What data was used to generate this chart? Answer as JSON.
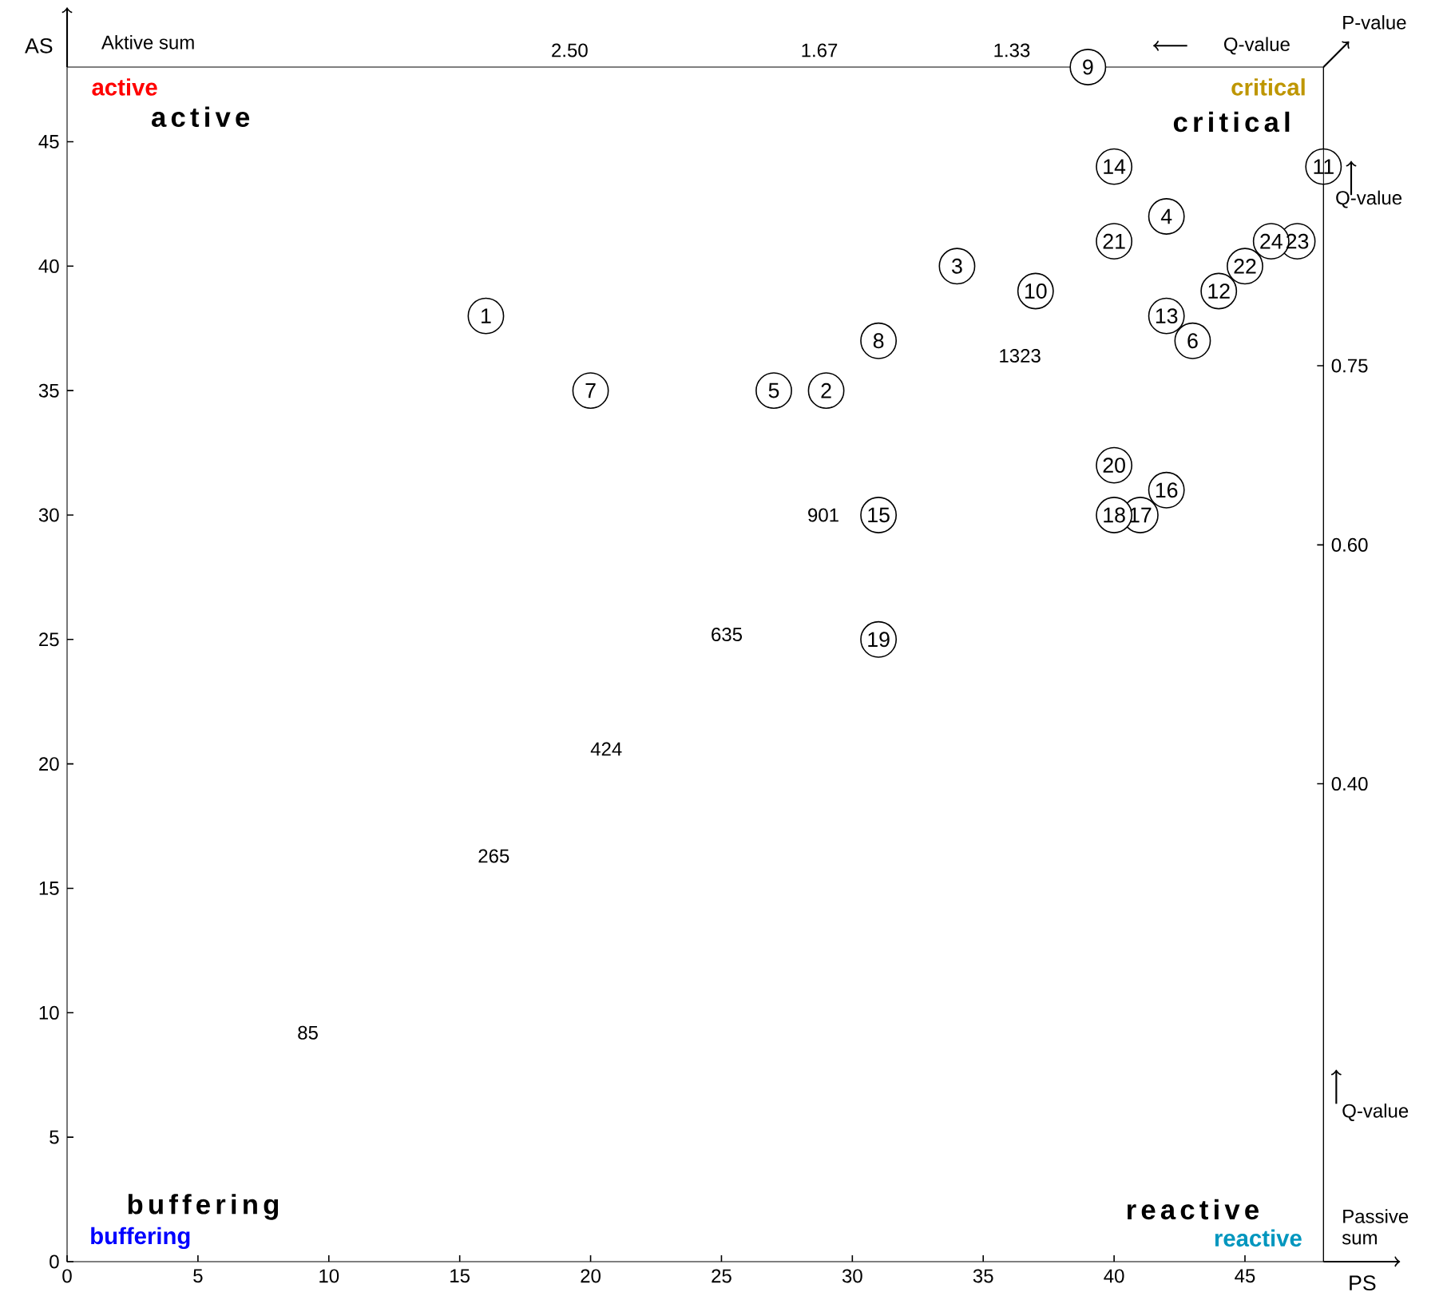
{
  "chart_data": {
    "type": "scatter",
    "xlabel": "PS",
    "ylabel": "AS",
    "x2label": "Q-value",
    "y2label": "Q-value",
    "xlim": [
      0,
      48
    ],
    "ylim": [
      0,
      48
    ],
    "xticks": [
      0,
      5,
      10,
      15,
      20,
      25,
      30,
      35,
      40,
      45
    ],
    "yticks": [
      0,
      5,
      10,
      15,
      20,
      25,
      30,
      35,
      40,
      45
    ],
    "y2lim": [
      0,
      1
    ],
    "y2ticks": [
      {
        "value": 0.4,
        "label": "0.40"
      },
      {
        "value": 0.6,
        "label": "0.60"
      },
      {
        "value": 0.75,
        "label": "0.75"
      }
    ],
    "marker": "circle",
    "grid": false,
    "series": [
      {
        "color": "#ffffff",
        "x": [
          16,
          29,
          34,
          42,
          27,
          43,
          20,
          31,
          39,
          37,
          48,
          44,
          42,
          40,
          31,
          42,
          41,
          40,
          31,
          40,
          40,
          45,
          47,
          46
        ],
        "values": [
          38,
          35,
          40,
          42,
          35,
          37,
          35,
          37,
          48,
          39,
          44,
          39,
          38,
          44,
          30,
          31,
          30,
          30,
          25,
          32,
          41,
          40,
          41,
          41
        ]
      }
    ],
    "annotations": [
      "Aktive sum",
      "P-value",
      "Q-value",
      "Passive sum",
      "2.50",
      "1.67",
      "1.33",
      "85",
      "265",
      "424",
      "635",
      "901",
      "1323",
      "active",
      "active",
      "critical",
      "critical",
      "buffering",
      "buffering",
      "reactive",
      "reactive",
      {
        "text": "1",
        "x": 16,
        "y": 38
      },
      {
        "text": "2",
        "x": 29,
        "y": 35
      },
      {
        "text": "3",
        "x": 34,
        "y": 40
      },
      {
        "text": "4",
        "x": 42,
        "y": 42
      },
      {
        "text": "5",
        "x": 27,
        "y": 35
      },
      {
        "text": "6",
        "x": 43,
        "y": 37
      },
      {
        "text": "7",
        "x": 20,
        "y": 35
      },
      {
        "text": "8",
        "x": 31,
        "y": 37
      },
      {
        "text": "9",
        "x": 39,
        "y": 48
      },
      {
        "text": "10",
        "x": 37,
        "y": 39
      },
      {
        "text": "11",
        "x": 48,
        "y": 44
      },
      {
        "text": "12",
        "x": 44,
        "y": 39
      },
      {
        "text": "13",
        "x": 42,
        "y": 38
      },
      {
        "text": "14",
        "x": 40,
        "y": 44
      },
      {
        "text": "15",
        "x": 31,
        "y": 30
      },
      {
        "text": "16",
        "x": 42,
        "y": 31
      },
      {
        "text": "17",
        "x": 41,
        "y": 30
      },
      {
        "text": "18",
        "x": 40,
        "y": 30
      },
      {
        "text": "19",
        "x": 31,
        "y": 25
      },
      {
        "text": "20",
        "x": 40,
        "y": 32
      },
      {
        "text": "21",
        "x": 40,
        "y": 41
      },
      {
        "text": "22",
        "x": 45,
        "y": 40
      },
      {
        "text": "23",
        "x": 47,
        "y": 41
      },
      {
        "text": "24",
        "x": 46,
        "y": 41
      }
    ]
  }
}
